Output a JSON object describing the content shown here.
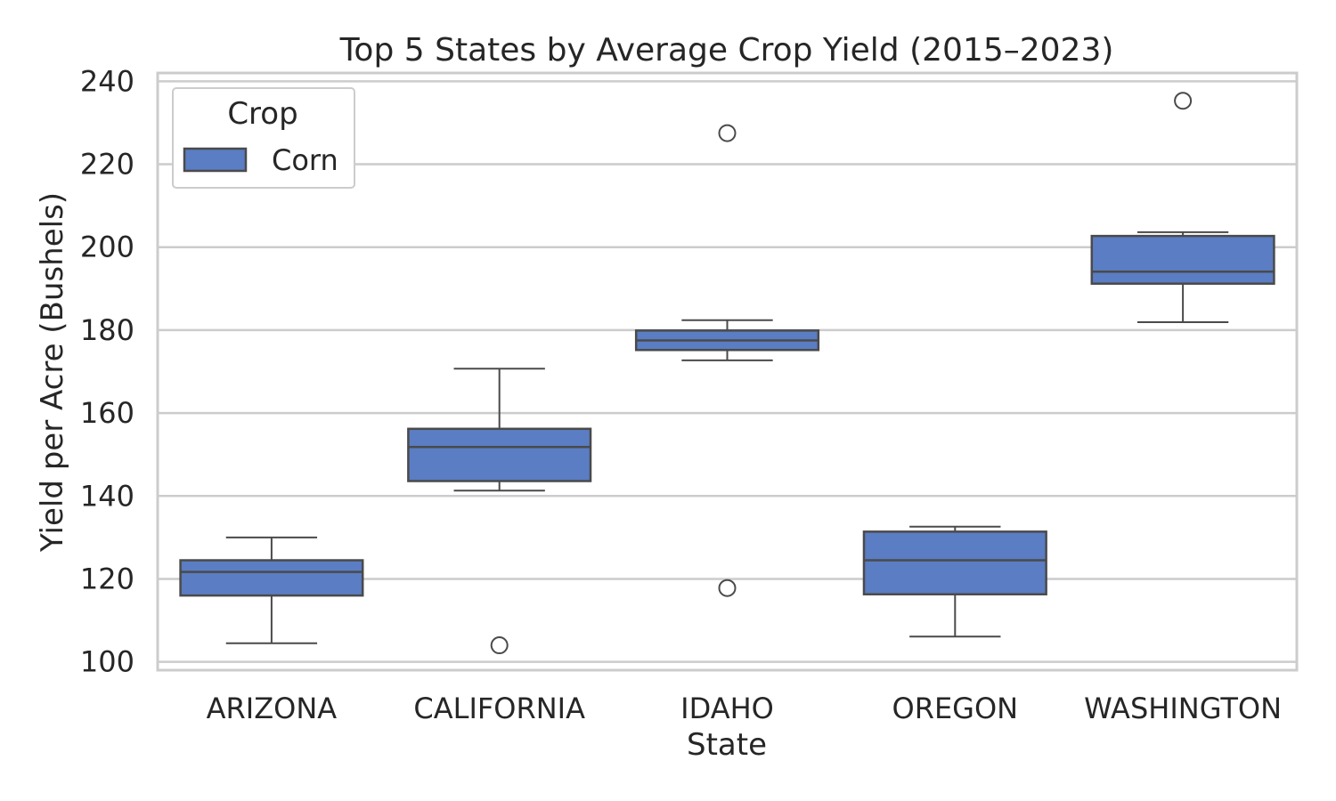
{
  "chart_data": {
    "type": "box",
    "title": "Top 5 States by Average Crop Yield (2015–2023)",
    "xlabel": "State",
    "ylabel": "Yield per Acre (Bushels)",
    "ylim": [
      98,
      242
    ],
    "yticks": [
      100,
      120,
      140,
      160,
      180,
      200,
      220,
      240
    ],
    "ytick_labels": [
      "100",
      "120",
      "140",
      "160",
      "180",
      "200",
      "220",
      "240"
    ],
    "grid": true,
    "legend": {
      "title": "Crop",
      "placement": "top-left",
      "entries": [
        "Corn"
      ]
    },
    "categories": [
      "ARIZONA",
      "CALIFORNIA",
      "IDAHO",
      "OREGON",
      "WASHINGTON"
    ],
    "series": [
      {
        "name": "Corn",
        "color": "#5a7dc3",
        "boxes": [
          {
            "category": "ARIZONA",
            "whisker_low": 104.5,
            "q1": 116.0,
            "median": 121.7,
            "q3": 124.5,
            "whisker_high": 130.0,
            "outliers": []
          },
          {
            "category": "CALIFORNIA",
            "whisker_low": 141.3,
            "q1": 143.6,
            "median": 151.8,
            "q3": 156.2,
            "whisker_high": 170.7,
            "outliers": [
              104.0
            ]
          },
          {
            "category": "IDAHO",
            "whisker_low": 172.7,
            "q1": 175.2,
            "median": 177.5,
            "q3": 179.9,
            "whisker_high": 182.4,
            "outliers": [
              227.5,
              117.8
            ]
          },
          {
            "category": "OREGON",
            "whisker_low": 106.1,
            "q1": 116.3,
            "median": 124.5,
            "q3": 131.4,
            "whisker_high": 132.6,
            "outliers": []
          },
          {
            "category": "WASHINGTON",
            "whisker_low": 181.9,
            "q1": 191.2,
            "median": 194.1,
            "q3": 202.7,
            "whisker_high": 203.6,
            "outliers": [
              235.3
            ]
          }
        ]
      }
    ]
  }
}
